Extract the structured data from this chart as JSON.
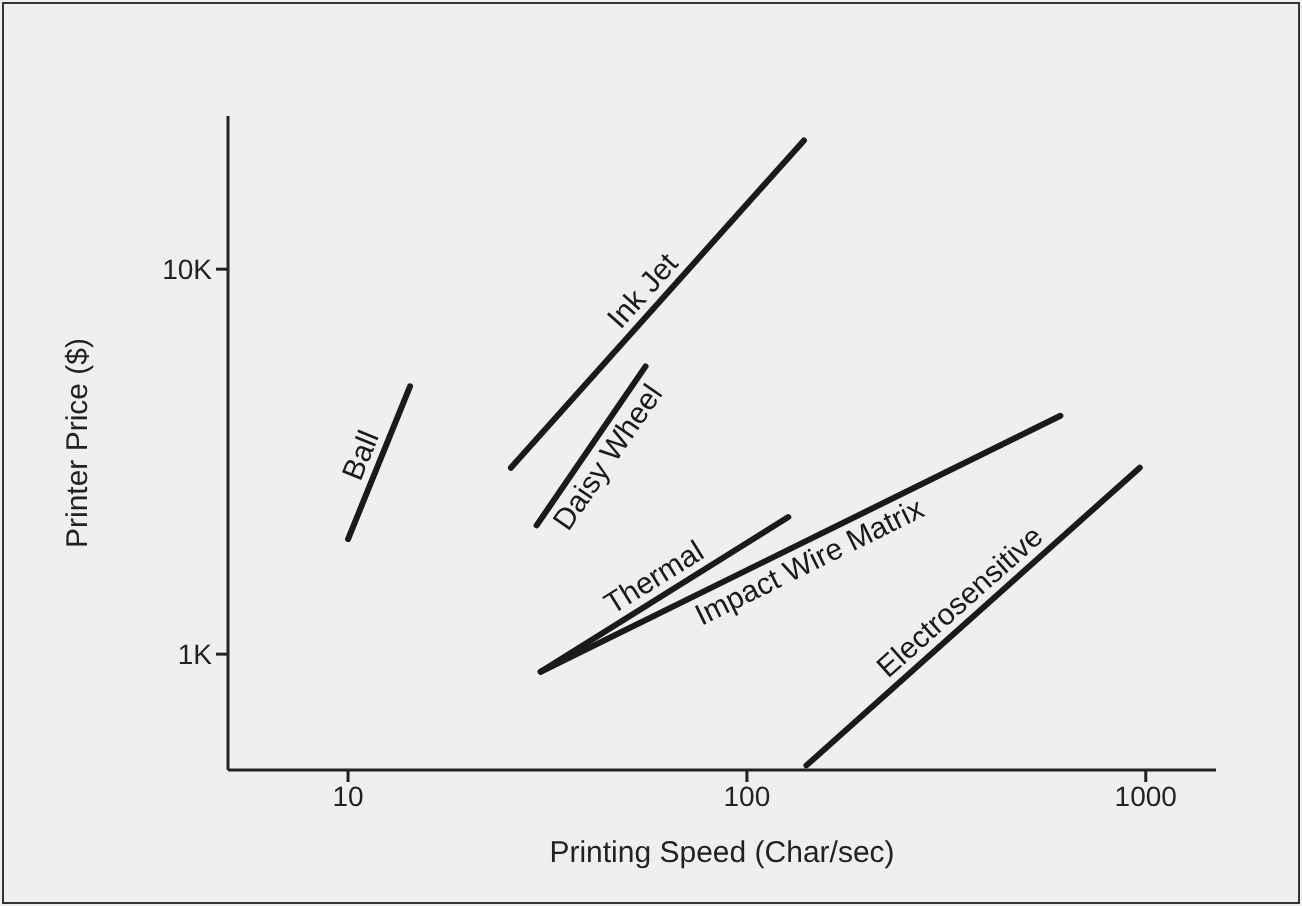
{
  "chart_data": {
    "type": "line",
    "xlabel": "Printing Speed (Char/sec)",
    "ylabel": "Printer Price ($)",
    "log": "xy",
    "xlim": [
      5,
      1500
    ],
    "ylim": [
      500,
      25000
    ],
    "xticks": [
      10,
      100,
      1000
    ],
    "yticks": [
      {
        "value": 1000,
        "label": "1K"
      },
      {
        "value": 10000,
        "label": "10K"
      }
    ],
    "marker": "none",
    "line_style": "solid",
    "grid": false,
    "series": [
      {
        "name": "Ball",
        "color": "#1a1a1a",
        "x": [
          10,
          14.3
        ],
        "values": [
          1990,
          4960
        ]
      },
      {
        "name": "Ink Jet",
        "color": "#1a1a1a",
        "x": [
          25.6,
          139
        ],
        "values": [
          3050,
          21600
        ]
      },
      {
        "name": "Daisy Wheel",
        "color": "#1a1a1a",
        "x": [
          29.7,
          55.7
        ],
        "values": [
          2160,
          5590
        ]
      },
      {
        "name": "Thermal",
        "color": "#1a1a1a",
        "x": [
          30.4,
          127
        ],
        "values": [
          900,
          2270
        ]
      },
      {
        "name": "Impact Wire Matrix",
        "color": "#1a1a1a",
        "x": [
          30.4,
          611
        ],
        "values": [
          900,
          4160
        ]
      },
      {
        "name": "Electrosensitive",
        "color": "#1a1a1a",
        "x": [
          141,
          966
        ],
        "values": [
          514,
          3050
        ]
      }
    ]
  }
}
